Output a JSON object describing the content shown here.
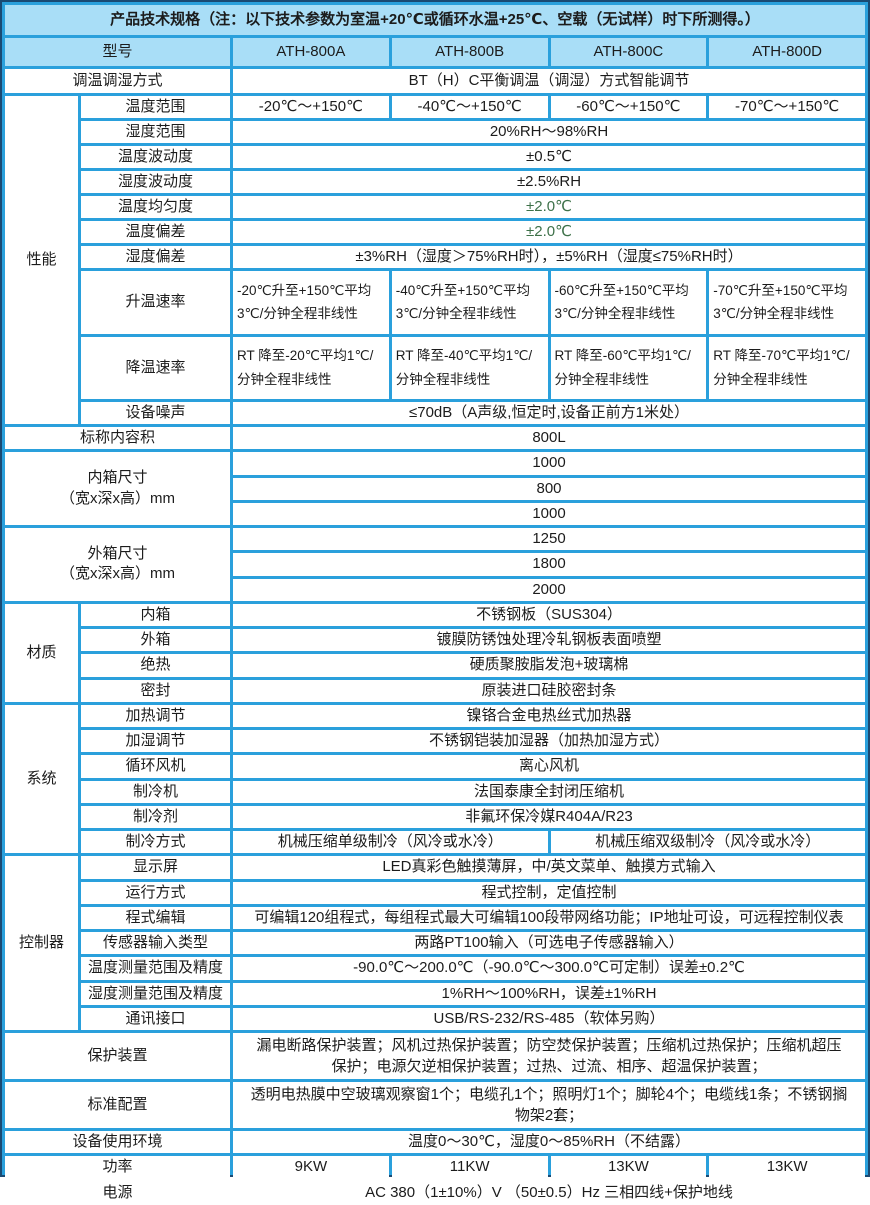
{
  "colors": {
    "grid_blue": "#2aa0dc",
    "header_bg": "#a9def7",
    "cell_bg": "#ffffff",
    "frame_dark": "#1a4a73",
    "text": "#1c1c1c",
    "accent_green": "#3e7149"
  },
  "title": "产品技术规格（注：以下技术参数为室温+20℃或循环水温+25℃、空载（无试样）时下所测得。）",
  "models": {
    "label": "型号",
    "a": "ATH-800A",
    "b": "ATH-800B",
    "c": "ATH-800C",
    "d": "ATH-800D"
  },
  "method": {
    "label": "调温调湿方式",
    "value": "BT（H）C平衡调温（调湿）方式智能调节"
  },
  "perf": {
    "group": "性能",
    "temp_range": {
      "label": "温度范围",
      "a": "-20℃～+150℃",
      "b": "-40℃～+150℃",
      "c": "-60℃～+150℃",
      "d": "-70℃～+150℃"
    },
    "humi_range": {
      "label": "湿度范围",
      "value": "20%RH～98%RH"
    },
    "temp_fluct": {
      "label": "温度波动度",
      "value": "±0.5℃"
    },
    "humi_fluct": {
      "label": "湿度波动度",
      "value": "±2.5%RH"
    },
    "temp_unif": {
      "label": "温度均匀度",
      "value": "±2.0℃"
    },
    "temp_dev": {
      "label": "温度偏差",
      "value": "±2.0℃"
    },
    "humi_dev": {
      "label": "湿度偏差",
      "value": "±3%RH（湿度＞75%RH时），±5%RH（湿度≤75%RH时）"
    },
    "heat_rate": {
      "label": "升温速率",
      "a": "-20℃升至+150℃平均3℃/分钟全程非线性",
      "b": "-40℃升至+150℃平均3℃/分钟全程非线性",
      "c": "-60℃升至+150℃平均3℃/分钟全程非线性",
      "d": "-70℃升至+150℃平均3℃/分钟全程非线性"
    },
    "cool_rate": {
      "label": "降温速率",
      "a": "RT 降至-20℃平均1℃/分钟全程非线性",
      "b": "RT 降至-40℃平均1℃/分钟全程非线性",
      "c": "RT 降至-60℃平均1℃/分钟全程非线性",
      "d": "RT 降至-70℃平均1℃/分钟全程非线性"
    },
    "noise": {
      "label": "设备噪声",
      "value": "≤70dB（A声级,恒定时,设备正前方1米处）"
    }
  },
  "volume": {
    "label": "标称内容积",
    "value": "800L"
  },
  "inner_size": {
    "label": "内箱尺寸\n（宽x深x高）mm",
    "w": "1000",
    "d": "800",
    "h": "1000"
  },
  "outer_size": {
    "label": "外箱尺寸\n（宽x深x高）mm",
    "w": "1250",
    "d": "1800",
    "h": "2000"
  },
  "material": {
    "group": "材质",
    "inner": {
      "label": "内箱",
      "value": "不锈钢板（SUS304）"
    },
    "outer": {
      "label": "外箱",
      "value": "镀膜防锈蚀处理冷轧钢板表面喷塑"
    },
    "insulation": {
      "label": "绝热",
      "value": "硬质聚胺脂发泡+玻璃棉"
    },
    "seal": {
      "label": "密封",
      "value": "原装进口硅胶密封条"
    }
  },
  "system": {
    "group": "系统",
    "heating": {
      "label": "加热调节",
      "value": "镍铬合金电热丝式加热器"
    },
    "humidify": {
      "label": "加湿调节",
      "value": "不锈钢铠装加湿器（加热加湿方式）"
    },
    "fan": {
      "label": "循环风机",
      "value": "离心风机"
    },
    "compressor": {
      "label": "制冷机",
      "value": "法国泰康全封闭压缩机"
    },
    "refrigerant": {
      "label": "制冷剂",
      "value": "非氟环保冷媒R404A/R23"
    },
    "cooling_mode": {
      "label": "制冷方式",
      "left": "机械压缩单级制冷（风冷或水冷）",
      "right": "机械压缩双级制冷（风冷或水冷）"
    }
  },
  "controller": {
    "group": "控制器",
    "display": {
      "label": "显示屏",
      "value": "LED真彩色触摸薄屏，中/英文菜单、触摸方式输入"
    },
    "run_mode": {
      "label": "运行方式",
      "value": "程式控制，定值控制"
    },
    "programming": {
      "label": "程式编辑",
      "value": "可编辑120组程式，每组程式最大可编辑100段带网络功能；IP地址可设，可远程控制仪表"
    },
    "sensor": {
      "label": "传感器输入类型",
      "value": "两路PT100输入（可选电子传感器输入）"
    },
    "temp_meas": {
      "label": "温度测量范围及精度",
      "value": "-90.0℃～200.0℃（-90.0℃～300.0℃可定制）误差±0.2℃"
    },
    "humi_meas": {
      "label": "湿度测量范围及精度",
      "value": "1%RH～100%RH，误差±1%RH"
    },
    "comm": {
      "label": "通讯接口",
      "value": "USB/RS-232/RS-485（软体另购）"
    }
  },
  "protection": {
    "label": "保护装置",
    "value": "漏电断路保护装置；风机过热保护装置；防空焚保护装置；压缩机过热保护；压缩机超压\n保护；电源欠逆相保护装置；过热、过流、相序、超温保护装置；"
  },
  "standard_config": {
    "label": "标准配置",
    "value": "透明电热膜中空玻璃观察窗1个；电缆孔1个；照明灯1个；脚轮4个；电缆线1条；不锈钢搁\n物架2套；"
  },
  "environment": {
    "label": "设备使用环境",
    "value": "温度0～30℃，湿度0～85%RH（不结露）"
  },
  "power": {
    "label": "功率",
    "a": "9KW",
    "b": "11KW",
    "c": "13KW",
    "d": "13KW"
  },
  "supply": {
    "label": "电源",
    "value": "AC 380（1±10%）V （50±0.5）Hz 三相四线+保护地线"
  }
}
